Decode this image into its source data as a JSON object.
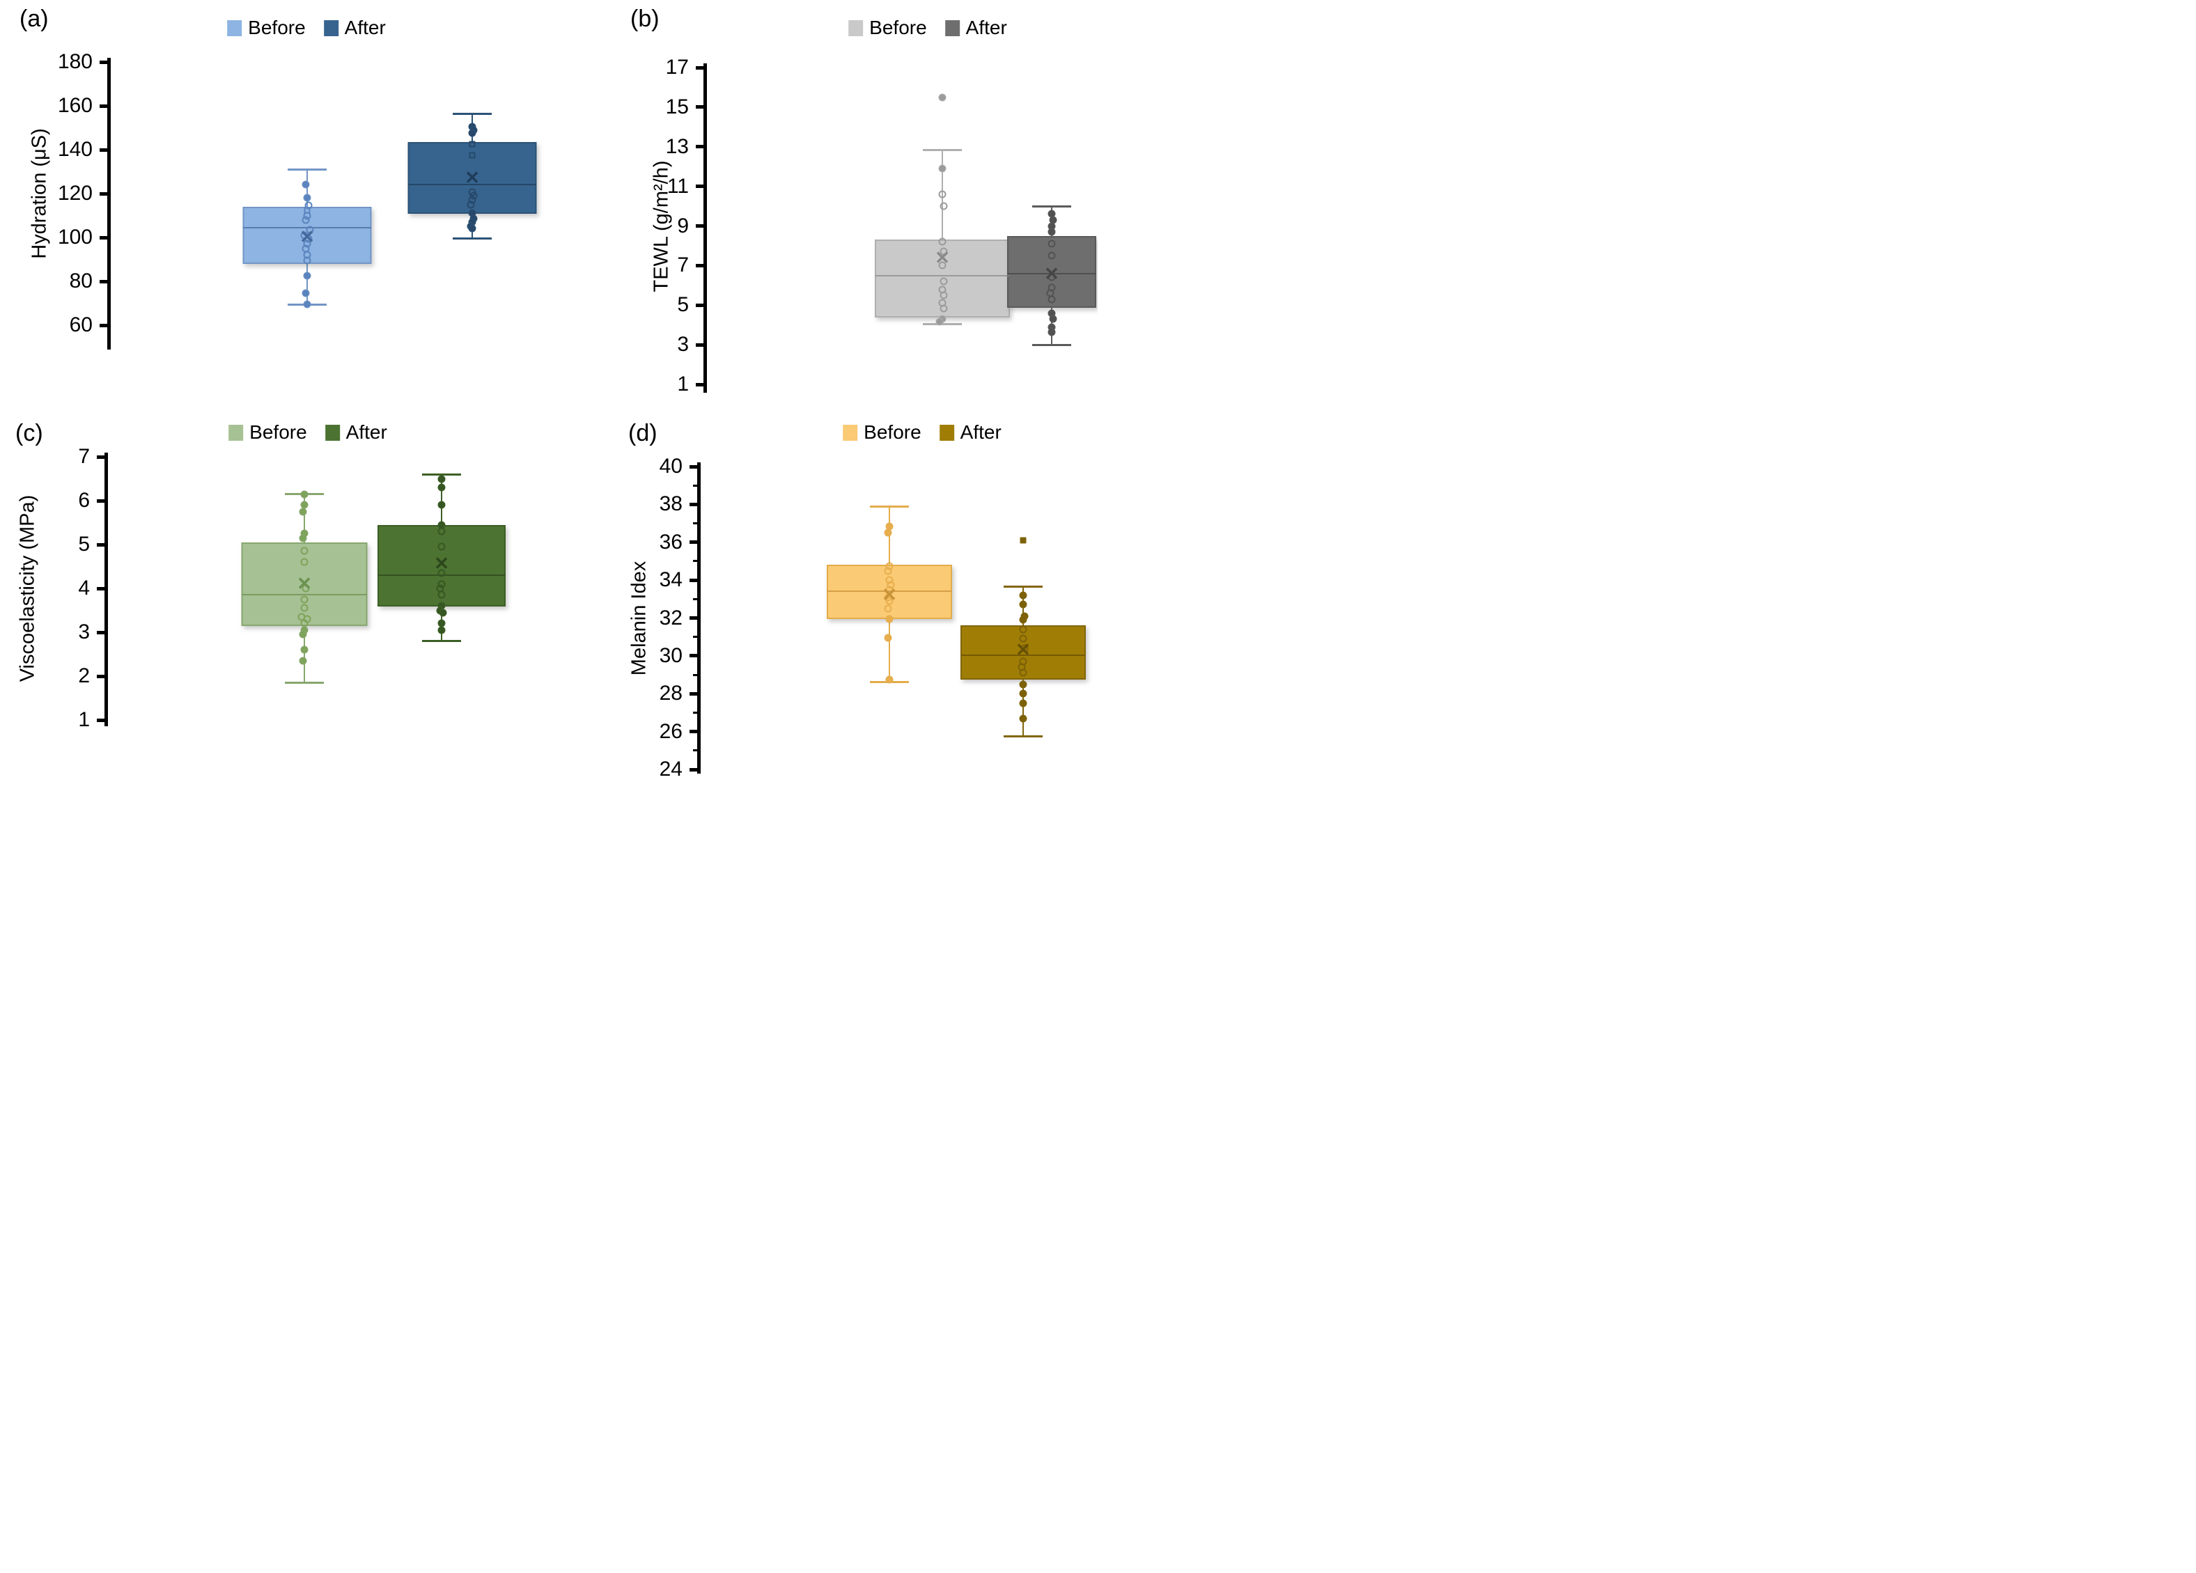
{
  "figure": {
    "background": "#ffffff"
  },
  "chart_data": [
    {
      "type": "box",
      "panel_label": "(a)",
      "ylabel": "Hydration (μS)",
      "ylim": [
        60,
        180
      ],
      "yticks": [
        "180",
        "160",
        "140",
        "120",
        "100",
        "80",
        "60"
      ],
      "grid": "off",
      "legend_position": "top-center",
      "series": [
        {
          "name": "Before",
          "fill": "#8DB4E2",
          "stroke": "#7195C5",
          "marker_color": "#5B84BE",
          "mean_color": "#44699D",
          "whisker_low": 69.5,
          "q1": 89.3,
          "median": 104.5,
          "q3": 114,
          "whisker_high": 131,
          "mean": 100,
          "points": [
            [
              124,
              0,
              -1,
              0
            ],
            [
              118,
              0,
              0,
              0
            ],
            [
              114.5,
              1,
              1,
              0
            ],
            [
              112.5,
              1,
              0,
              1
            ],
            [
              110,
              1,
              0,
              0
            ],
            [
              108,
              1,
              -1,
              0
            ],
            [
              103.5,
              1,
              2,
              0
            ],
            [
              101,
              1,
              -2,
              0
            ],
            [
              99.5,
              1,
              1,
              0
            ],
            [
              97,
              1,
              0,
              0
            ],
            [
              95,
              1,
              -1,
              0
            ],
            [
              92,
              1,
              0,
              0
            ],
            [
              89.5,
              1,
              0,
              0
            ],
            [
              82.5,
              0,
              0,
              0
            ],
            [
              74.5,
              0,
              -1,
              0
            ],
            [
              69.5,
              0,
              0,
              0
            ]
          ]
        },
        {
          "name": "After",
          "fill": "#36648E",
          "stroke": "#2C5276",
          "marker_color": "#27486A",
          "mean_color": "#1F3C59",
          "whisker_low": 99.5,
          "q1": 112,
          "median": 124,
          "q3": 143.5,
          "whisker_high": 156.5,
          "mean": 127,
          "points": [
            [
              150.5,
              0,
              0,
              0
            ],
            [
              149,
              0,
              1,
              0
            ],
            [
              147.5,
              0,
              0,
              0
            ],
            [
              142.5,
              1,
              0,
              1
            ],
            [
              137.5,
              1,
              0,
              1
            ],
            [
              120.5,
              1,
              0,
              0
            ],
            [
              119,
              1,
              1,
              0
            ],
            [
              117,
              1,
              0,
              0
            ],
            [
              115,
              1,
              -1,
              0
            ],
            [
              111,
              0,
              0,
              0
            ],
            [
              108.5,
              0,
              1,
              0
            ],
            [
              107,
              0,
              0,
              0
            ],
            [
              105,
              0,
              -1,
              0
            ],
            [
              104,
              0,
              0,
              0
            ]
          ]
        }
      ]
    },
    {
      "type": "box",
      "panel_label": "(b)",
      "ylabel": "TEWL (g/m²/h)",
      "ylim": [
        1,
        17
      ],
      "yticks": [
        "17",
        "15",
        "13",
        "11",
        "9",
        "7",
        "5",
        "3",
        "1"
      ],
      "grid": "off",
      "legend_position": "top-center",
      "series": [
        {
          "name": "Before",
          "fill": "#C9C9C9",
          "stroke": "#AFAFAF",
          "marker_color": "#9B9B9B",
          "mean_color": "#8A8A8A",
          "whisker_low": 4.05,
          "q1": 4.5,
          "median": 6.5,
          "q3": 8.3,
          "whisker_high": 12.85,
          "mean": 7.35,
          "points": [
            [
              15.5,
              0,
              0,
              0
            ],
            [
              11.9,
              0,
              0,
              0
            ],
            [
              10.6,
              1,
              0,
              0
            ],
            [
              10.0,
              1,
              1,
              0
            ],
            [
              8.2,
              1,
              0,
              0
            ],
            [
              7.7,
              1,
              1,
              0
            ],
            [
              7.0,
              1,
              0,
              0
            ],
            [
              6.2,
              1,
              1,
              0
            ],
            [
              5.8,
              1,
              0,
              0
            ],
            [
              5.5,
              1,
              1,
              0
            ],
            [
              5.1,
              1,
              0,
              0
            ],
            [
              4.85,
              1,
              1,
              0
            ],
            [
              4.3,
              0,
              0,
              0
            ],
            [
              4.15,
              0,
              -2,
              0
            ]
          ]
        },
        {
          "name": "After",
          "fill": "#6E6E6E",
          "stroke": "#5A5A5A",
          "marker_color": "#525252",
          "mean_color": "#464646",
          "whisker_low": 3.0,
          "q1": 5.0,
          "median": 6.6,
          "q3": 8.5,
          "whisker_high": 10.0,
          "mean": 6.55,
          "points": [
            [
              9.6,
              0,
              0,
              0
            ],
            [
              9.3,
              0,
              1,
              0
            ],
            [
              9.0,
              0,
              0,
              0
            ],
            [
              8.7,
              0,
              0,
              0
            ],
            [
              8.1,
              1,
              0,
              0
            ],
            [
              7.5,
              1,
              0,
              0
            ],
            [
              6.4,
              1,
              0,
              0
            ],
            [
              5.9,
              1,
              0,
              0
            ],
            [
              5.6,
              1,
              -1,
              0
            ],
            [
              5.3,
              1,
              0,
              0
            ],
            [
              4.6,
              0,
              0,
              0
            ],
            [
              4.3,
              0,
              1,
              0
            ],
            [
              3.9,
              0,
              0,
              0
            ],
            [
              3.65,
              0,
              0,
              0
            ]
          ]
        }
      ]
    },
    {
      "type": "box",
      "panel_label": "(c)",
      "ylabel": "Viscoelasticity (MPa)",
      "ylim": [
        1,
        7
      ],
      "yticks": [
        "7",
        "6",
        "5",
        "4",
        "3",
        "2",
        "1"
      ],
      "grid": "off",
      "legend_position": "top-center",
      "series": [
        {
          "name": "Before",
          "fill": "#A6C193",
          "stroke": "#87A76E",
          "marker_color": "#7EA35A",
          "mean_color": "#6B9150",
          "whisker_low": 1.85,
          "q1": 3.2,
          "median": 3.85,
          "q3": 5.05,
          "whisker_high": 6.15,
          "mean": 4.1,
          "points": [
            [
              6.15,
              0,
              0,
              0
            ],
            [
              5.9,
              0,
              0,
              0
            ],
            [
              5.75,
              0,
              -1,
              0
            ],
            [
              5.25,
              0,
              0,
              0
            ],
            [
              5.15,
              0,
              -1,
              0
            ],
            [
              4.85,
              1,
              0,
              0
            ],
            [
              4.6,
              1,
              0,
              0
            ],
            [
              4.0,
              1,
              1,
              0
            ],
            [
              3.75,
              1,
              0,
              0
            ],
            [
              3.55,
              1,
              0,
              0
            ],
            [
              3.35,
              1,
              -2,
              0
            ],
            [
              3.3,
              1,
              2,
              0
            ],
            [
              3.2,
              1,
              0,
              0
            ],
            [
              3.05,
              0,
              0,
              0
            ],
            [
              2.95,
              0,
              -1,
              0
            ],
            [
              2.6,
              0,
              0,
              0
            ],
            [
              2.35,
              0,
              -1,
              0
            ]
          ]
        },
        {
          "name": "After",
          "fill": "#4C7331",
          "stroke": "#3C5F25",
          "marker_color": "#365723",
          "mean_color": "#2C471B",
          "whisker_low": 2.8,
          "q1": 3.65,
          "median": 4.3,
          "q3": 5.45,
          "whisker_high": 6.6,
          "mean": 4.55,
          "points": [
            [
              6.5,
              0,
              0,
              0
            ],
            [
              6.3,
              0,
              0,
              0
            ],
            [
              5.9,
              0,
              0,
              0
            ],
            [
              5.45,
              0,
              0,
              0
            ],
            [
              5.3,
              1,
              0,
              0
            ],
            [
              4.95,
              1,
              0,
              0
            ],
            [
              4.35,
              1,
              0,
              0
            ],
            [
              4.1,
              1,
              0,
              0
            ],
            [
              4.0,
              1,
              -1,
              0
            ],
            [
              3.85,
              1,
              0,
              0
            ],
            [
              3.6,
              0,
              0,
              0
            ],
            [
              3.5,
              0,
              -1,
              0
            ],
            [
              3.45,
              0,
              1,
              0
            ],
            [
              3.2,
              0,
              0,
              0
            ],
            [
              3.05,
              0,
              0,
              0
            ]
          ]
        }
      ]
    },
    {
      "type": "box",
      "panel_label": "(d)",
      "ylabel": "Melanin Idex",
      "ylim": [
        24,
        40
      ],
      "yticks": [
        "40",
        "38",
        "36",
        "34",
        "32",
        "30",
        "28",
        "26",
        "24"
      ],
      "grid": "off",
      "legend_position": "top-center",
      "series": [
        {
          "name": "Before",
          "fill": "#FACA74",
          "stroke": "#E3AC4A",
          "marker_color": "#E8AE4E",
          "mean_color": "#C89238",
          "whisker_low": 28.6,
          "q1": 32.1,
          "median": 33.4,
          "q3": 34.8,
          "whisker_high": 37.9,
          "mean": 33.2,
          "points": [
            [
              36.85,
              0,
              0,
              0
            ],
            [
              36.5,
              0,
              -1,
              0
            ],
            [
              34.75,
              1,
              0,
              0
            ],
            [
              34.5,
              1,
              -1,
              0
            ],
            [
              34.0,
              1,
              0,
              0
            ],
            [
              33.75,
              1,
              1,
              0
            ],
            [
              33.5,
              1,
              0,
              0
            ],
            [
              33.1,
              1,
              -1,
              0
            ],
            [
              32.9,
              1,
              0,
              0
            ],
            [
              32.5,
              1,
              -1,
              0
            ],
            [
              31.95,
              0,
              0,
              0
            ],
            [
              30.95,
              0,
              -1,
              0
            ],
            [
              28.75,
              0,
              0,
              0
            ]
          ]
        },
        {
          "name": "After",
          "fill": "#A07D05",
          "stroke": "#82650A",
          "marker_color": "#7C6108",
          "mean_color": "#655004",
          "whisker_low": 25.75,
          "q1": 28.9,
          "median": 30.05,
          "q3": 31.6,
          "whisker_high": 33.65,
          "mean": 30.3,
          "points": [
            [
              36.1,
              0,
              0,
              1
            ],
            [
              33.2,
              0,
              0,
              0
            ],
            [
              32.7,
              0,
              0,
              0
            ],
            [
              32.1,
              0,
              1,
              0
            ],
            [
              31.9,
              0,
              0,
              0
            ],
            [
              31.4,
              1,
              0,
              0
            ],
            [
              30.9,
              1,
              0,
              0
            ],
            [
              30.4,
              1,
              1,
              0
            ],
            [
              29.7,
              1,
              0,
              0
            ],
            [
              29.4,
              1,
              -1,
              0
            ],
            [
              29.1,
              1,
              0,
              0
            ],
            [
              28.5,
              0,
              0,
              0
            ],
            [
              28.0,
              0,
              0,
              0
            ],
            [
              27.5,
              0,
              0,
              0
            ],
            [
              26.7,
              0,
              0,
              0
            ]
          ]
        }
      ]
    }
  ]
}
